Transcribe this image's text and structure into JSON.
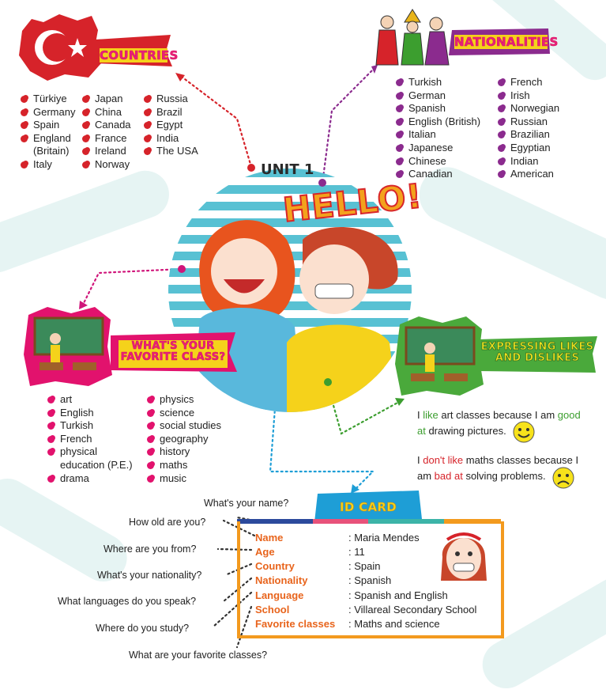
{
  "unit": {
    "title": "UNIT 1",
    "hello": "HELLO!"
  },
  "countries": {
    "heading": "COUNTRIES",
    "col1": [
      "Türkiye",
      "Germany",
      "Spain",
      "England (Britain)",
      "Italy"
    ],
    "col2": [
      "Japan",
      "China",
      "Canada",
      "France",
      "Ireland",
      "Norway"
    ],
    "col3": [
      "Russia",
      "Brazil",
      "Egypt",
      "India",
      "The USA"
    ]
  },
  "nationalities": {
    "heading": "NATIONALITIES",
    "col1": [
      "Turkish",
      "German",
      "Spanish",
      "English (British)",
      "Italian",
      "Japanese",
      "Chinese",
      "Canadian"
    ],
    "col2": [
      "French",
      "Irish",
      "Norwegian",
      "Russian",
      "Brazilian",
      "Egyptian",
      "Indian",
      "American"
    ]
  },
  "classes": {
    "heading": "WHAT'S YOUR FAVORITE CLASS?",
    "col1": [
      "art",
      "English",
      "Turkish",
      "French",
      "physical education (P.E.)",
      "drama"
    ],
    "col2": [
      "physics",
      "science",
      "social studies",
      "geography",
      "history",
      "maths",
      "music"
    ]
  },
  "likes": {
    "heading": "EXPRESSING LIKES AND DISLIKES",
    "like": {
      "p1": "I ",
      "k1": "like",
      "p2": " art classes because I am ",
      "k2": "good at",
      "p3": " drawing pictures."
    },
    "dislike": {
      "p1": "I ",
      "k1": "don't like",
      "p2": " maths classes because I am ",
      "k2": "bad at",
      "p3": " solving problems."
    }
  },
  "questions": [
    "What's your name?",
    "How old are you?",
    "Where are you from?",
    "What's your nationality?",
    "What languages do you speak?",
    "Where do you study?",
    "What are your favorite classes?"
  ],
  "id_card": {
    "heading": "ID CARD",
    "rows": [
      {
        "label": "Name",
        "value": "Maria Mendes"
      },
      {
        "label": "Age",
        "value": "11"
      },
      {
        "label": "Country",
        "value": "Spain"
      },
      {
        "label": "Nationality",
        "value": "Spanish"
      },
      {
        "label": "Language",
        "value": "Spanish and English"
      },
      {
        "label": "School",
        "value": "Villareal Secondary School"
      },
      {
        "label": "Favorite classes",
        "value": "Maths and science"
      }
    ]
  },
  "colors": {
    "red": "#d6232a",
    "purple": "#8b2b8e",
    "pink": "#e2126d",
    "green": "#3c9e2f",
    "orange": "#f39a1e",
    "teal": "#58c1d3"
  }
}
